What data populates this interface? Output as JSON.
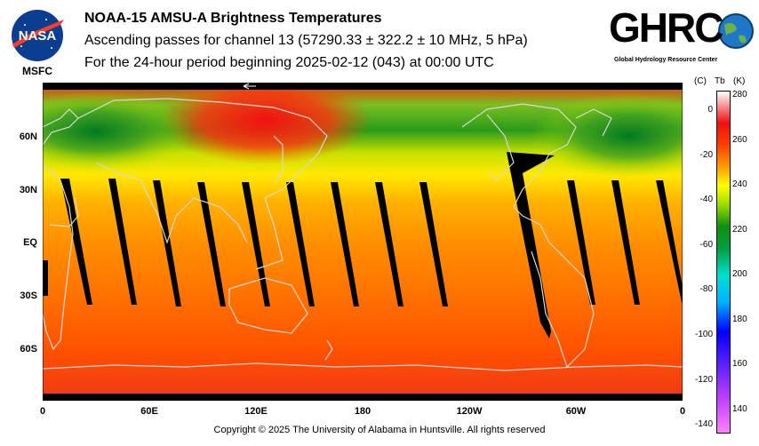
{
  "logos": {
    "nasa_text": "NASA",
    "nasa_sub": "MSFC",
    "ghrc_text": "GHRC",
    "ghrc_sub": "Global Hydrology Resource Center"
  },
  "header": {
    "title": "NOAA-15 AMSU-A Brightness Temperatures",
    "subtitle": "Ascending passes for channel 13 (57290.33 ± 322.2 ± 10 MHz, 5 hPa)",
    "period": "For the 24-hour period beginning 2025-02-12 (043) at 00:00 UTC"
  },
  "map": {
    "lat_labels": [
      "60N",
      "30N",
      "EQ",
      "30S",
      "60S"
    ],
    "lon_labels": [
      "0",
      "60E",
      "120E",
      "180",
      "120W",
      "60W",
      "0"
    ],
    "colors": {
      "land_outline": "#d8d8d8",
      "gap": "#000000"
    }
  },
  "colorbar": {
    "unit_c": "(C)",
    "label_tb": "Tb",
    "unit_k": "(K)",
    "celsius_ticks": [
      "0",
      "-20",
      "-40",
      "-60",
      "-80",
      "-100",
      "-120",
      "-140"
    ],
    "kelvin_ticks": [
      "280",
      "260",
      "240",
      "220",
      "200",
      "180",
      "160",
      "140"
    ],
    "kelvin_range": [
      130,
      282
    ],
    "stops": [
      {
        "k": 130,
        "color": "#ff80ff"
      },
      {
        "k": 145,
        "color": "#c040ff"
      },
      {
        "k": 160,
        "color": "#6020ff"
      },
      {
        "k": 175,
        "color": "#0000ff"
      },
      {
        "k": 188,
        "color": "#00b0ff"
      },
      {
        "k": 200,
        "color": "#00e0d0"
      },
      {
        "k": 212,
        "color": "#00a040"
      },
      {
        "k": 222,
        "color": "#109010"
      },
      {
        "k": 232,
        "color": "#a0e000"
      },
      {
        "k": 240,
        "color": "#ffff00"
      },
      {
        "k": 248,
        "color": "#ffa000"
      },
      {
        "k": 258,
        "color": "#ff4000"
      },
      {
        "k": 268,
        "color": "#f01010"
      },
      {
        "k": 282,
        "color": "#ffffff"
      }
    ]
  },
  "footer": {
    "copyright": "Copyright © 2025 The University of Alabama in Huntsville.  All rights reserved"
  }
}
